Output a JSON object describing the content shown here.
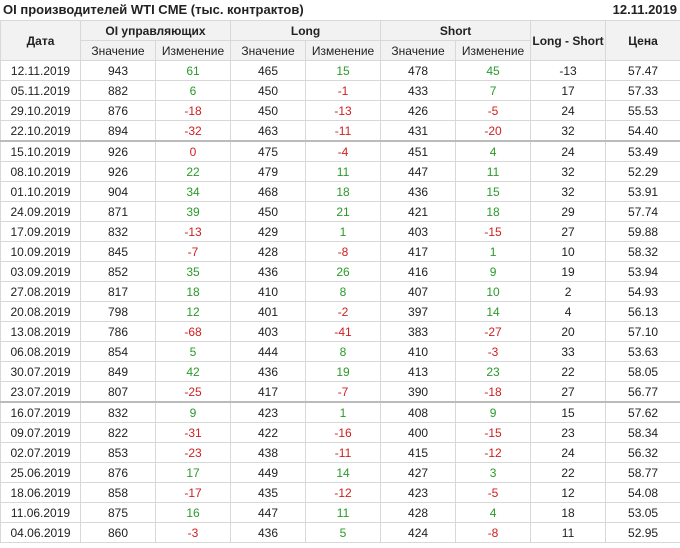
{
  "header": {
    "title": "OI производителей WTI CME (тыс. контрактов)",
    "date": "12.11.2019"
  },
  "table": {
    "header_top": [
      "Дата",
      "OI управляющих",
      "Long",
      "Short",
      "Long - Short",
      "Цена"
    ],
    "header_sub": [
      "Значение",
      "Изменение",
      "Значение",
      "Изменение",
      "Значение",
      "Изменение"
    ],
    "rows": [
      [
        "12.11.2019",
        "943",
        "61",
        "465",
        "15",
        "478",
        "45",
        "-13",
        "57.47"
      ],
      [
        "05.11.2019",
        "882",
        "6",
        "450",
        "-1",
        "433",
        "7",
        "17",
        "57.33"
      ],
      [
        "29.10.2019",
        "876",
        "-18",
        "450",
        "-13",
        "426",
        "-5",
        "24",
        "55.53"
      ],
      [
        "22.10.2019",
        "894",
        "-32",
        "463",
        "-11",
        "431",
        "-20",
        "32",
        "54.40"
      ],
      [
        "15.10.2019",
        "926",
        "0",
        "475",
        "-4",
        "451",
        "4",
        "24",
        "53.49"
      ],
      [
        "08.10.2019",
        "926",
        "22",
        "479",
        "11",
        "447",
        "11",
        "32",
        "52.29"
      ],
      [
        "01.10.2019",
        "904",
        "34",
        "468",
        "18",
        "436",
        "15",
        "32",
        "53.91"
      ],
      [
        "24.09.2019",
        "871",
        "39",
        "450",
        "21",
        "421",
        "18",
        "29",
        "57.74"
      ],
      [
        "17.09.2019",
        "832",
        "-13",
        "429",
        "1",
        "403",
        "-15",
        "27",
        "59.88"
      ],
      [
        "10.09.2019",
        "845",
        "-7",
        "428",
        "-8",
        "417",
        "1",
        "10",
        "58.32"
      ],
      [
        "03.09.2019",
        "852",
        "35",
        "436",
        "26",
        "416",
        "9",
        "19",
        "53.94"
      ],
      [
        "27.08.2019",
        "817",
        "18",
        "410",
        "8",
        "407",
        "10",
        "2",
        "54.93"
      ],
      [
        "20.08.2019",
        "798",
        "12",
        "401",
        "-2",
        "397",
        "14",
        "4",
        "56.13"
      ],
      [
        "13.08.2019",
        "786",
        "-68",
        "403",
        "-41",
        "383",
        "-27",
        "20",
        "57.10"
      ],
      [
        "06.08.2019",
        "854",
        "5",
        "444",
        "8",
        "410",
        "-3",
        "33",
        "53.63"
      ],
      [
        "30.07.2019",
        "849",
        "42",
        "436",
        "19",
        "413",
        "23",
        "22",
        "58.05"
      ],
      [
        "23.07.2019",
        "807",
        "-25",
        "417",
        "-7",
        "390",
        "-18",
        "27",
        "56.77"
      ],
      [
        "16.07.2019",
        "832",
        "9",
        "423",
        "1",
        "408",
        "9",
        "15",
        "57.62"
      ],
      [
        "09.07.2019",
        "822",
        "-31",
        "422",
        "-16",
        "400",
        "-15",
        "23",
        "58.34"
      ],
      [
        "02.07.2019",
        "853",
        "-23",
        "438",
        "-11",
        "415",
        "-12",
        "24",
        "56.32"
      ],
      [
        "25.06.2019",
        "876",
        "17",
        "449",
        "14",
        "427",
        "3",
        "22",
        "58.77"
      ],
      [
        "18.06.2019",
        "858",
        "-17",
        "435",
        "-12",
        "423",
        "-5",
        "12",
        "54.08"
      ],
      [
        "11.06.2019",
        "875",
        "16",
        "447",
        "11",
        "428",
        "4",
        "18",
        "53.05"
      ],
      [
        "04.06.2019",
        "860",
        "-3",
        "436",
        "5",
        "424",
        "-8",
        "11",
        "52.95"
      ]
    ]
  }
}
